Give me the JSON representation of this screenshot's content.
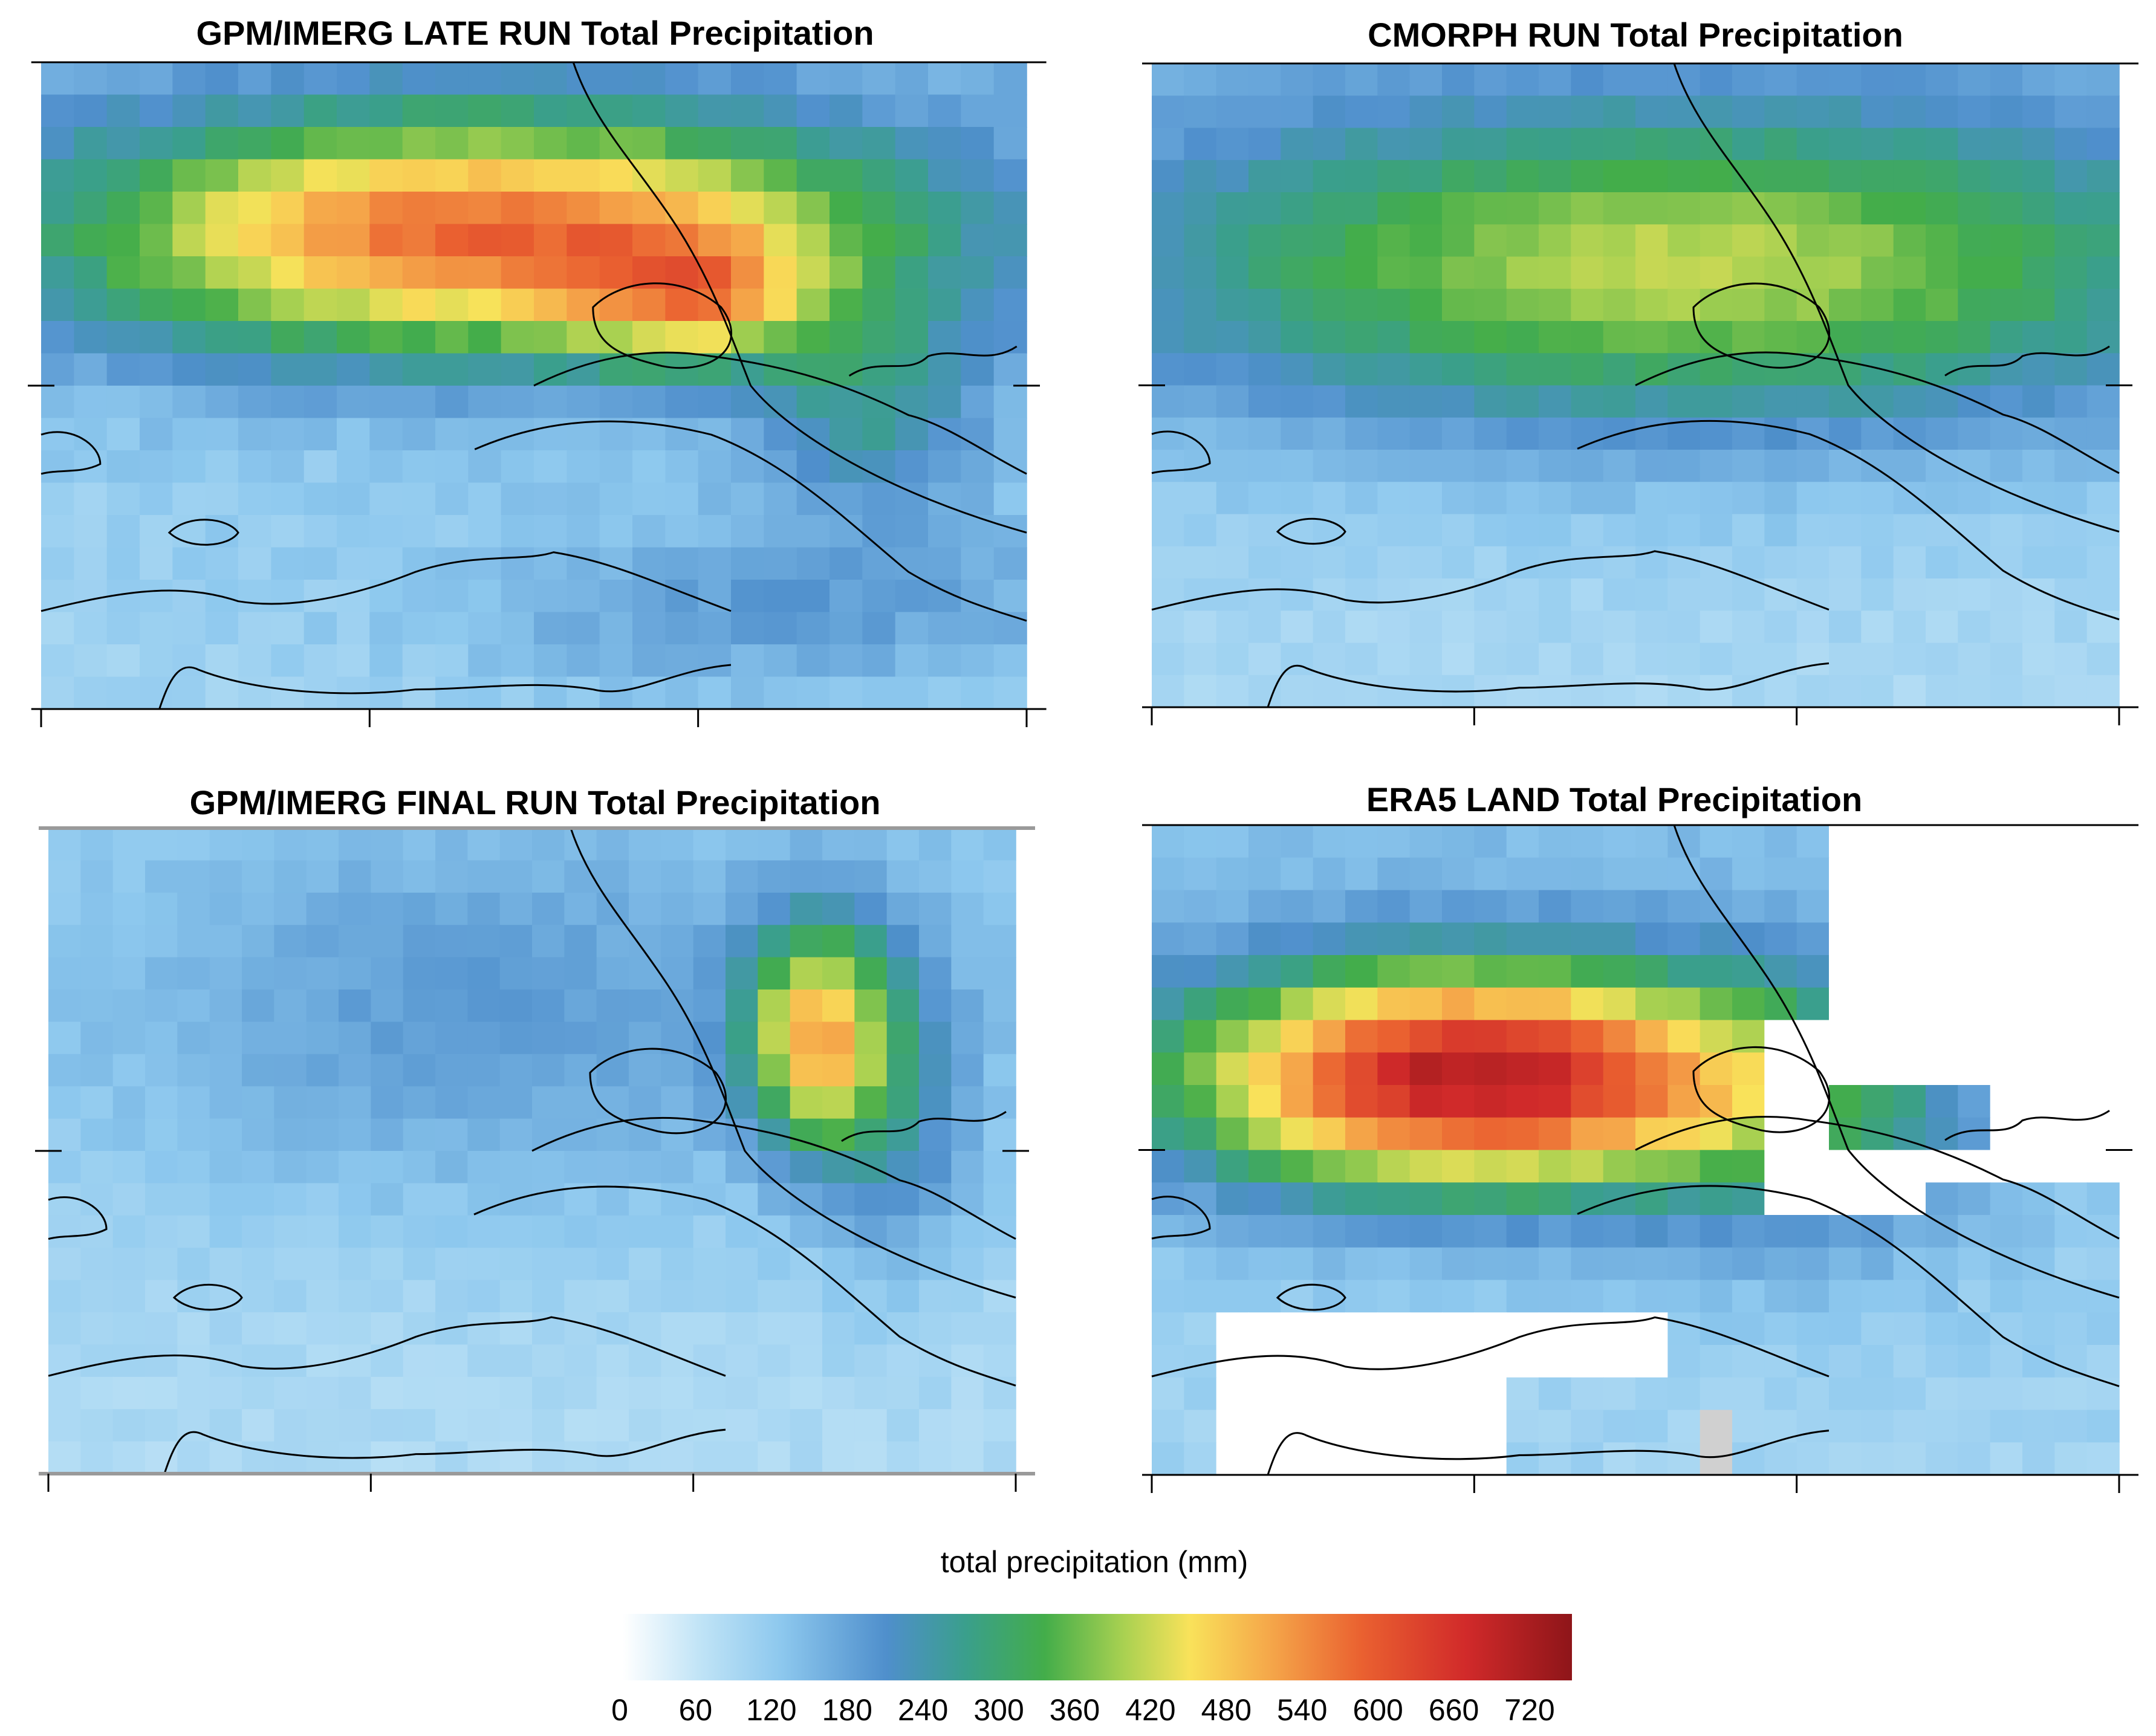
{
  "figure": {
    "colorbar_label": "total precipitation (mm)"
  },
  "chart_data": {
    "type": "heatmap",
    "colorbar": {
      "label": "total precipitation (mm)",
      "range": [
        0,
        720
      ],
      "ticks": [
        "0",
        "60",
        "120",
        "180",
        "240",
        "300",
        "360",
        "420",
        "480",
        "540",
        "600",
        "660",
        "720"
      ],
      "stops": [
        {
          "value": 0,
          "color": "#ffffff"
        },
        {
          "value": 60,
          "color": "#bfe3f6"
        },
        {
          "value": 120,
          "color": "#8dc8ee"
        },
        {
          "value": 200,
          "color": "#4f8fcc"
        },
        {
          "value": 260,
          "color": "#3a9f8c"
        },
        {
          "value": 320,
          "color": "#43ad4a"
        },
        {
          "value": 380,
          "color": "#a9d151"
        },
        {
          "value": 430,
          "color": "#f9e25a"
        },
        {
          "value": 490,
          "color": "#f5a84a"
        },
        {
          "value": 560,
          "color": "#ea6130"
        },
        {
          "value": 640,
          "color": "#d12a2a"
        },
        {
          "value": 720,
          "color": "#8e1519"
        }
      ]
    },
    "panels": [
      {
        "title": "GPM/IMERG LATE RUN Total Precipitation",
        "grid_cols": 30,
        "grid_rows": 20,
        "field": {
          "base": 90,
          "gradient": 50,
          "bumps": [
            {
              "cx": 0.45,
              "cy": 0.27,
              "sx": 0.3,
              "sy": 0.13,
              "amp": 430
            },
            {
              "cx": 0.66,
              "cy": 0.37,
              "sx": 0.08,
              "sy": 0.07,
              "amp": 180
            },
            {
              "cx": 0.85,
              "cy": 0.55,
              "sx": 0.08,
              "sy": 0.12,
              "amp": 120
            },
            {
              "cx": 0.75,
              "cy": 0.85,
              "sx": 0.25,
              "sy": 0.1,
              "amp": 80
            }
          ],
          "noise": 16,
          "seed": 11
        },
        "masked": false
      },
      {
        "title": "CMORPH RUN Total Precipitation",
        "grid_cols": 30,
        "grid_rows": 20,
        "field": {
          "base": 85,
          "gradient": 50,
          "bumps": [
            {
              "cx": 0.55,
              "cy": 0.32,
              "sx": 0.4,
              "sy": 0.17,
              "amp": 275
            }
          ],
          "noise": 12,
          "seed": 23
        },
        "masked": false
      },
      {
        "title": "GPM/IMERG FINAL RUN Total Precipitation",
        "grid_cols": 30,
        "grid_rows": 20,
        "field": {
          "base": 80,
          "gradient": 30,
          "bumps": [
            {
              "cx": 0.45,
              "cy": 0.3,
              "sx": 0.28,
              "sy": 0.2,
              "amp": 80
            },
            {
              "cx": 0.79,
              "cy": 0.32,
              "sx": 0.05,
              "sy": 0.12,
              "amp": 320
            },
            {
              "cx": 0.87,
              "cy": 0.42,
              "sx": 0.06,
              "sy": 0.18,
              "amp": 120
            }
          ],
          "noise": 12,
          "seed": 37
        },
        "masked": false
      },
      {
        "title": "ERA5 LAND Total Precipitation",
        "grid_cols": 30,
        "grid_rows": 20,
        "field": {
          "base": 95,
          "gradient": 40,
          "bumps": [
            {
              "cx": 0.33,
              "cy": 0.39,
              "sx": 0.21,
              "sy": 0.12,
              "amp": 560
            },
            {
              "cx": 0.68,
              "cy": 0.45,
              "sx": 0.12,
              "sy": 0.15,
              "amp": 120
            }
          ],
          "noise": 14,
          "seed": 53
        },
        "masked": true
      }
    ]
  }
}
